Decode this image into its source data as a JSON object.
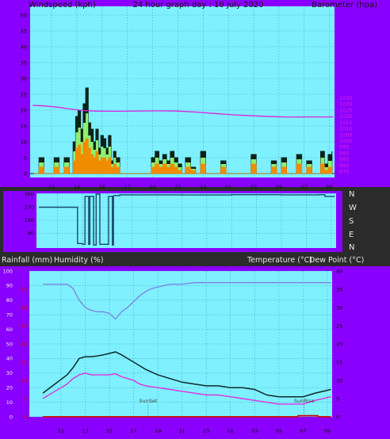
{
  "header": {
    "windspeed_label": "Windspeed (kph)",
    "graph_title": "24 hour graph day : 10 July 2020",
    "barometer_label": "Barometer (hpa)"
  },
  "bottom_header": {
    "rainfall_label": "Rainfall (mm)",
    "humidity_label": "Humidity (%)",
    "temperature_label": "Temperature (°C)",
    "dewpoint_label": "Dew Point (°C)"
  },
  "compass_labels": [
    "N",
    "W",
    "S",
    "E",
    "N"
  ],
  "colors": {
    "frame": "#8a00ff",
    "plot_bg": "#7ff0ff",
    "grid": "#4aa8c0",
    "magenta": "#dd22dd",
    "humidity": "#7f7fe0",
    "temperature": "#102a2a",
    "dewpoint": "#e030e0",
    "rain": "#cc0000",
    "gust": "#0a2418",
    "wind_avg": "#f08c00",
    "wind_green": "#90ee70",
    "direction": "#1a4a6a"
  },
  "chart_data": [
    {
      "type": "line",
      "name": "wind-and-barometer",
      "title": "24 hour graph day : 10 July 2020",
      "ylabel": "Windspeed (kph)",
      "y2label": "Barometer (hpa)",
      "ylim": [
        0,
        50
      ],
      "y2lim": [
        970,
        1110
      ],
      "yticks": [
        0,
        5,
        10,
        15,
        20,
        25,
        30,
        35,
        40,
        45,
        50
      ],
      "y2ticks": [
        975,
        980,
        985,
        990,
        995,
        1000,
        1005,
        1010,
        1015,
        1020,
        1025,
        1030,
        1035
      ],
      "x_ticks": [
        "11",
        "13",
        "15",
        "17",
        "19",
        "21",
        "23",
        "01",
        "03",
        "05",
        "07",
        "09"
      ],
      "x_hours": [
        11,
        13,
        15,
        17,
        19,
        21,
        23,
        25,
        27,
        29,
        31,
        33
      ],
      "xlim": [
        9.3,
        33.4
      ],
      "grid": true,
      "barometer": {
        "x": [
          9.5,
          10.5,
          11.5,
          12.5,
          13.5,
          14.5,
          15.5,
          16.5,
          18,
          19.5,
          21,
          22.5,
          24,
          25.5,
          27,
          28.5,
          29.5,
          30.5,
          31.5,
          32.5,
          33.3
        ],
        "hpa": [
          1029,
          1028.5,
          1027.5,
          1026,
          1024.8,
          1024.3,
          1024.2,
          1024.2,
          1024.4,
          1024.5,
          1024.3,
          1023.5,
          1022.3,
          1021.2,
          1020.4,
          1019.8,
          1019.5,
          1019.5,
          1019.6,
          1019.5,
          1019.6
        ]
      },
      "gust": {
        "x": [
          9.6,
          10,
          10.4,
          10.8,
          11.2,
          11.6,
          12,
          12.4,
          12.7,
          12.9,
          13.1,
          13.3,
          13.5,
          13.7,
          13.9,
          14.1,
          14.3,
          14.5,
          14.7,
          14.9,
          15.1,
          15.3,
          15.5,
          15.7,
          15.9,
          16.1,
          16.4,
          16.8,
          17.2,
          17.8,
          18.5,
          18.9,
          19.2,
          19.5,
          19.8,
          20.1,
          20.4,
          20.7,
          21,
          21.3,
          21.6,
          22,
          22.4,
          22.8,
          23.2,
          23.6,
          24,
          24.4,
          24.8,
          25.2,
          25.6,
          26,
          26.4,
          26.8,
          27.2,
          27.6,
          28,
          28.4,
          28.8,
          29.2,
          29.6,
          30,
          30.4,
          30.8,
          31.2,
          31.6,
          32,
          32.3,
          32.6,
          32.9,
          33.2
        ],
        "kph": [
          0,
          5,
          0,
          0,
          5,
          0,
          5,
          0,
          10,
          18,
          20,
          14,
          22,
          27,
          16,
          14,
          10,
          14,
          8,
          12,
          11,
          8,
          12,
          4,
          7,
          5,
          0,
          0,
          0,
          0,
          0,
          5,
          7,
          4,
          6,
          4,
          7,
          5,
          3,
          0,
          5,
          2,
          0,
          7,
          0,
          0,
          0,
          4,
          0,
          0,
          0,
          0,
          0,
          6,
          0,
          0,
          0,
          4,
          0,
          5,
          0,
          0,
          6,
          0,
          4,
          0,
          0,
          7,
          3,
          6,
          7
        ]
      },
      "avg": {
        "x": [
          9.6,
          10,
          10.4,
          10.8,
          11.2,
          11.6,
          12,
          12.4,
          12.7,
          12.9,
          13.1,
          13.3,
          13.5,
          13.7,
          13.9,
          14.1,
          14.3,
          14.5,
          14.7,
          14.9,
          15.1,
          15.3,
          15.5,
          15.7,
          15.9,
          16.1,
          16.4,
          16.8,
          17.2,
          17.8,
          18.5,
          18.9,
          19.2,
          19.5,
          19.8,
          20.1,
          20.4,
          20.7,
          21,
          21.3,
          21.6,
          22,
          22.4,
          22.8,
          23.2,
          23.6,
          24,
          24.4,
          24.8,
          25.2,
          25.6,
          26,
          26.4,
          26.8,
          27.2,
          27.6,
          28,
          28.4,
          28.8,
          29.2,
          29.6,
          30,
          30.4,
          30.8,
          31.2,
          31.6,
          32,
          32.3,
          32.6,
          32.9,
          33.2
        ],
        "kph": [
          0,
          2,
          0,
          0,
          2,
          0,
          2,
          0,
          4,
          8,
          9,
          6,
          10,
          11,
          8,
          6,
          5,
          7,
          4,
          5,
          5,
          4,
          5,
          2,
          3,
          2,
          0,
          0,
          0,
          0,
          0,
          2,
          3,
          2,
          3,
          2,
          3,
          2,
          1,
          0,
          2,
          1,
          0,
          3,
          0,
          0,
          0,
          2,
          0,
          0,
          0,
          0,
          0,
          3,
          0,
          0,
          0,
          2,
          0,
          2,
          0,
          0,
          3,
          0,
          2,
          0,
          0,
          3,
          1,
          2,
          3
        ]
      }
    },
    {
      "type": "line",
      "name": "wind-direction",
      "yticks": [
        90,
        180,
        270,
        360
      ],
      "ylim": [
        0,
        360
      ],
      "x": [
        9.5,
        10.5,
        12.0,
        12.4,
        12.6,
        13.0,
        13.2,
        13.5,
        13.6,
        13.9,
        14.1,
        14.4,
        15.0,
        15.1,
        15.4,
        15.5,
        16.0,
        18.0,
        21.0,
        25.0,
        29.0,
        32.0,
        32.5,
        33.3
      ],
      "deg": [
        270,
        270,
        270,
        270,
        20,
        15,
        345,
        15,
        345,
        10,
        360,
        15,
        15,
        345,
        10,
        350,
        355,
        355,
        354,
        356,
        355,
        356,
        345,
        345
      ]
    },
    {
      "type": "line",
      "name": "rain-humidity-temperature",
      "ylabel": "Rainfall (mm) / Humidity (%)",
      "y2label": "Temperature (°C) / Dew Point (°C)",
      "humidity_ticks": [
        0,
        10,
        20,
        30,
        40,
        50,
        60,
        70,
        80,
        90,
        100
      ],
      "rain_ticks": [
        0,
        5,
        10,
        15,
        20,
        25,
        30,
        35
      ],
      "temp_ticks": [
        0,
        5,
        10,
        15,
        20,
        25,
        30,
        35,
        40
      ],
      "ylim": [
        0,
        100
      ],
      "y2lim": [
        0,
        40
      ],
      "x_ticks": [
        "11",
        "13",
        "15",
        "17",
        "19",
        "21",
        "23",
        "01",
        "03",
        "05",
        "07",
        "09"
      ],
      "annotations": [
        {
          "text": "SunSet",
          "x": 18.2
        },
        {
          "text": "SunRise",
          "x": 31.1
        }
      ],
      "series": [
        {
          "name": "Humidity (%)",
          "x": [
            9.5,
            10.5,
            11.5,
            12,
            12.5,
            13,
            13.5,
            14,
            14.5,
            15,
            15.5,
            16,
            16.5,
            17,
            17.5,
            18,
            18.5,
            19,
            19.5,
            20,
            21,
            22,
            23,
            24,
            25,
            26,
            27,
            28,
            29,
            30,
            31,
            32,
            33.3
          ],
          "values": [
            91,
            91,
            91,
            88,
            80,
            75,
            73,
            72,
            72,
            71,
            67,
            72,
            75,
            79,
            83,
            86,
            88,
            89,
            90,
            91,
            91,
            92,
            92,
            92,
            92,
            92,
            92,
            92,
            92,
            92,
            92,
            92,
            92
          ]
        },
        {
          "name": "Temperature (°C)",
          "x": [
            9.5,
            10.5,
            11.5,
            12,
            12.5,
            13,
            13.5,
            14,
            14.5,
            15,
            15.5,
            16,
            16.5,
            17,
            17.5,
            18,
            19,
            20,
            21,
            22,
            23,
            24,
            25,
            26,
            27,
            28,
            29,
            30,
            31,
            32,
            33.3
          ],
          "values": [
            6.5,
            9,
            11.5,
            13.5,
            16,
            16.5,
            16.5,
            16.7,
            17,
            17.4,
            17.8,
            17,
            16,
            15,
            14,
            13,
            11.5,
            10.5,
            9.5,
            9,
            8.5,
            8.5,
            8,
            8,
            7.5,
            6,
            5.5,
            5.5,
            5.5,
            6.5,
            7.5
          ]
        },
        {
          "name": "Dew Point (°C)",
          "x": [
            9.5,
            10.5,
            11.5,
            12,
            12.5,
            13,
            13.5,
            14,
            14.5,
            15,
            15.5,
            16,
            16.5,
            17,
            17.5,
            18,
            19,
            20,
            21,
            22,
            23,
            24,
            25,
            26,
            27,
            28,
            29,
            30,
            31,
            32,
            33.3
          ],
          "values": [
            5,
            7,
            9,
            10.5,
            11.5,
            12,
            11.5,
            11.5,
            11.5,
            11.5,
            11.8,
            11,
            10.5,
            10,
            9,
            8.5,
            8,
            7.5,
            7,
            6.5,
            6,
            6,
            5.5,
            5,
            4.5,
            4,
            3.5,
            3.5,
            3.5,
            4.5,
            5.5
          ]
        },
        {
          "name": "Rainfall (mm)",
          "x": [
            9.5,
            30.5,
            30.6,
            32.2,
            32.3,
            33.3
          ],
          "values": [
            0,
            0,
            0.3,
            0.3,
            0,
            0
          ]
        }
      ]
    }
  ]
}
